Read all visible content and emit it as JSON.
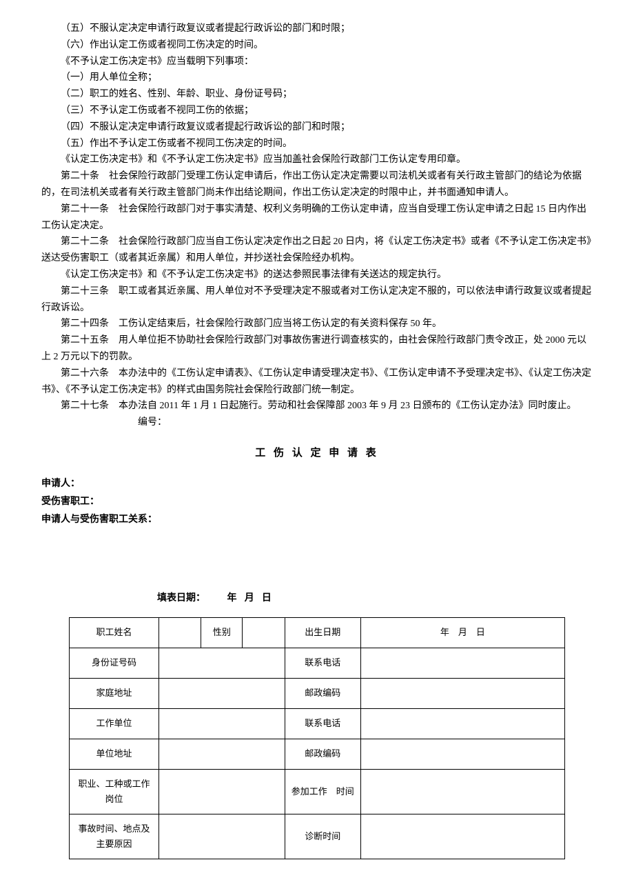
{
  "paragraphs": [
    "（五）不服认定决定申请行政复议或者提起行政诉讼的部门和时限；",
    "（六）作出认定工伤或者视同工伤决定的时间。",
    "《不予认定工伤决定书》应当载明下列事项：",
    "（一）用人单位全称；",
    "（二）职工的姓名、性别、年龄、职业、身份证号码；",
    "（三）不予认定工伤或者不视同工伤的依据；",
    "（四）不服认定决定申请行政复议或者提起行政诉讼的部门和时限；",
    "（五）作出不予认定工伤或者不视同工伤决定的时间。",
    "《认定工伤决定书》和《不予认定工伤决定书》应当加盖社会保险行政部门工伤认定专用印章。",
    "第二十条　社会保险行政部门受理工伤认定申请后，作出工伤认定决定需要以司法机关或者有关行政主管部门的结论为依据的，在司法机关或者有关行政主管部门尚未作出结论期间，作出工伤认定决定的时限中止，并书面通知申请人。",
    "第二十一条　社会保险行政部门对于事实清楚、权利义务明确的工伤认定申请，应当自受理工伤认定申请之日起 15 日内作出工伤认定决定。",
    "第二十二条　社会保险行政部门应当自工伤认定决定作出之日起 20 日内，将《认定工伤决定书》或者《不予认定工伤决定书》送达受伤害职工（或者其近亲属）和用人单位，并抄送社会保险经办机构。",
    "《认定工伤决定书》和《不予认定工伤决定书》的送达参照民事法律有关送达的规定执行。",
    "第二十三条　职工或者其近亲属、用人单位对不予受理决定不服或者对工伤认定决定不服的，可以依法申请行政复议或者提起行政诉讼。",
    "第二十四条　工伤认定结束后，社会保险行政部门应当将工伤认定的有关资料保存 50 年。",
    "第二十五条　用人单位拒不协助社会保险行政部门对事故伤害进行调查核实的，由社会保险行政部门责令改正，处 2000 元以上 2 万元以下的罚款。",
    "第二十六条　本办法中的《工伤认定申请表》、《工伤认定申请受理决定书》、《工伤认定申请不予受理决定书》、《认定工伤决定书》、《不予认定工伤决定书》的样式由国务院社会保险行政部门统一制定。",
    "第二十七条　本办法自 2011 年 1 月 1 日起施行。劳动和社会保障部 2003 年 9 月 23 日颁布的《工伤认定办法》同时废止。"
  ],
  "bianhao": "编号：",
  "form_title": "工 伤 认 定 申 请 表",
  "applicant_label": "申请人：",
  "injured_label": "受伤害职工：",
  "relation_label": "申请人与受伤害职工关系：",
  "fill_date_label": "填表日期：",
  "fill_date_value": "年月日",
  "table": {
    "row1": {
      "c1": "职工姓名",
      "c2": "",
      "c3": "性别",
      "c4": "",
      "c5": "出生日期",
      "c6": "年　月　日"
    },
    "row2": {
      "c1": "身份证号码",
      "c2": "",
      "c3": "联系电话",
      "c4": ""
    },
    "row3": {
      "c1": "家庭地址",
      "c2": "",
      "c3": "邮政编码",
      "c4": ""
    },
    "row4": {
      "c1": "工作单位",
      "c2": "",
      "c3": "联系电话",
      "c4": ""
    },
    "row5": {
      "c1": "单位地址",
      "c2": "",
      "c3": "邮政编码",
      "c4": ""
    },
    "row6": {
      "c1": "职业、工种或工作岗位",
      "c2": "",
      "c3": "参加工作　时间",
      "c4": ""
    },
    "row7": {
      "c1": "事故时间、地点及主要原因",
      "c2": "",
      "c3": "诊断时间",
      "c4": ""
    }
  }
}
